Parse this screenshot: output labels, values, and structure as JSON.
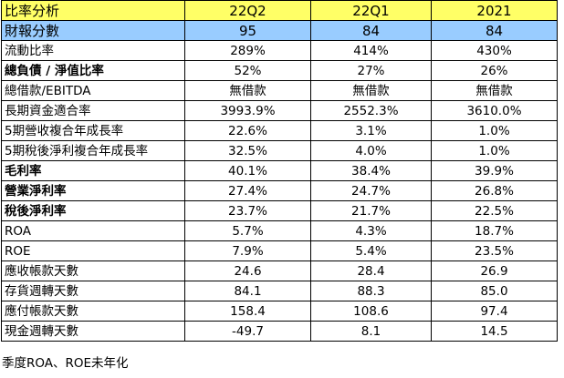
{
  "table": {
    "header": {
      "label": "比率分析",
      "cols": [
        "22Q2",
        "22Q1",
        "2021"
      ]
    },
    "rows": [
      {
        "label": "財報分數",
        "values": [
          "95",
          "84",
          "84"
        ],
        "style": "score"
      },
      {
        "label": "流動比率",
        "values": [
          "289%",
          "414%",
          "430%"
        ],
        "style": "normal"
      },
      {
        "label": "總負債 / 淨值比率",
        "values": [
          "52%",
          "27%",
          "26%"
        ],
        "style": "bold"
      },
      {
        "label": "總借款/EBITDA",
        "values": [
          "無借款",
          "無借款",
          "無借款"
        ],
        "style": "normal"
      },
      {
        "label": "長期資金適合率",
        "values": [
          "3993.9%",
          "2552.3%",
          "3610.0%"
        ],
        "style": "normal"
      },
      {
        "label": "5期營收複合年成長率",
        "values": [
          "22.6%",
          "3.1%",
          "1.0%"
        ],
        "style": "normal"
      },
      {
        "label": "5期稅後淨利複合年成長率",
        "values": [
          "32.5%",
          "4.0%",
          "1.0%"
        ],
        "style": "normal"
      },
      {
        "label": "毛利率",
        "values": [
          "40.1%",
          "38.4%",
          "39.9%"
        ],
        "style": "bold"
      },
      {
        "label": "營業淨利率",
        "values": [
          "27.4%",
          "24.7%",
          "26.8%"
        ],
        "style": "bold"
      },
      {
        "label": "稅後淨利率",
        "values": [
          "23.7%",
          "21.7%",
          "22.5%"
        ],
        "style": "bold"
      },
      {
        "label": "ROA",
        "values": [
          "5.7%",
          "4.3%",
          "18.7%"
        ],
        "style": "normal"
      },
      {
        "label": "ROE",
        "values": [
          "7.9%",
          "5.4%",
          "23.5%"
        ],
        "style": "normal"
      },
      {
        "label": "應收帳款天數",
        "values": [
          "24.6",
          "28.4",
          "26.9"
        ],
        "style": "normal"
      },
      {
        "label": "存貨週轉天數",
        "values": [
          "84.1",
          "88.3",
          "85.0"
        ],
        "style": "normal"
      },
      {
        "label": "應付帳款天數",
        "values": [
          "158.4",
          "108.6",
          "97.4"
        ],
        "style": "normal"
      },
      {
        "label": "現金週轉天數",
        "values": [
          "-49.7",
          "8.1",
          "14.5"
        ],
        "style": "normal"
      }
    ]
  },
  "footnote": "季度ROA、ROE未年化",
  "colors": {
    "header_bg": "#ffff66",
    "score_bg": "#99ccff",
    "border": "#000000"
  }
}
